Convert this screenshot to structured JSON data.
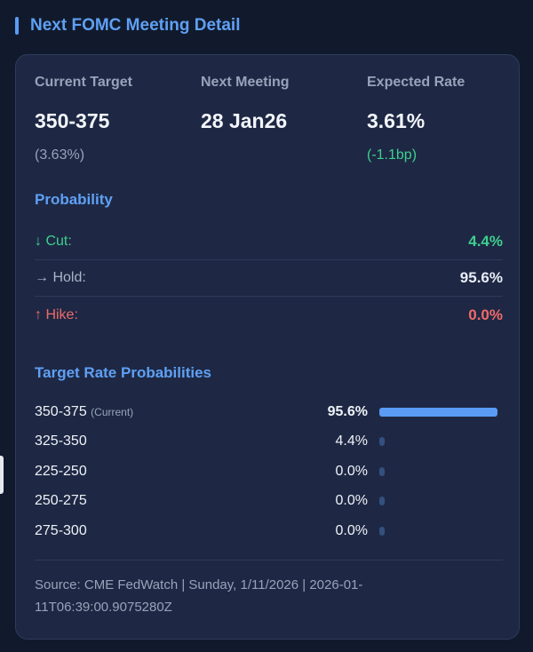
{
  "title": "Next FOMC Meeting Detail",
  "stats": [
    {
      "label": "Current Target",
      "value": "350-375",
      "sub": "(3.63%)"
    },
    {
      "label": "Next Meeting",
      "value": "28 Jan26",
      "sub": ""
    },
    {
      "label": "Expected Rate",
      "value": "3.61%",
      "sub": "(-1.1bp)"
    }
  ],
  "probability": {
    "heading": "Probability",
    "rows": [
      {
        "label": "↓ Cut:",
        "value": "4.4%",
        "color": "#3ecf8e"
      },
      {
        "label": "→ Hold:",
        "value": "95.6%",
        "color": "#ffffff"
      },
      {
        "label": "↑ Hike:",
        "value": "0.0%",
        "color": "#f06a6a"
      }
    ]
  },
  "target_rates": {
    "heading": "Target Rate Probabilities",
    "current_tag": "(Current)",
    "rows": [
      {
        "range": "350-375",
        "pct": "95.6%",
        "value": 95.6,
        "current": true
      },
      {
        "range": "325-350",
        "pct": "4.4%",
        "value": 4.4
      },
      {
        "range": "225-250",
        "pct": "0.0%",
        "value": 0.0
      },
      {
        "range": "250-275",
        "pct": "0.0%",
        "value": 0.0
      },
      {
        "range": "275-300",
        "pct": "0.0%",
        "value": 0.0
      }
    ]
  },
  "source": "Source: CME FedWatch | Sunday, 1/11/2026 | 2026-01-11T06:39:00.9075280Z",
  "colors": {
    "accent": "#5a9cf5",
    "positive": "#3ecf8e",
    "negative": "#f06a6a"
  }
}
